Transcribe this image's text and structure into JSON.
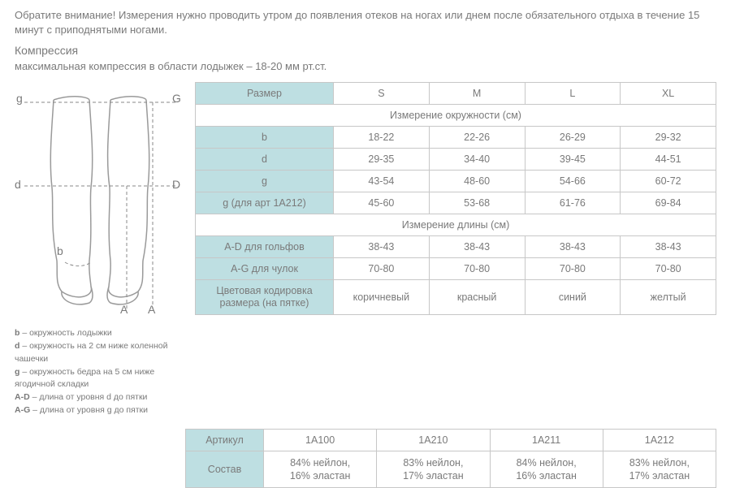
{
  "intro_text": "Обратите внимание! Измерения нужно проводить утром до появления отеков на ногах или днем после обязательного отдыха в течение 15 минут с приподнятыми ногами.",
  "compression_title": "Компрессия",
  "compression_sub": "максимальная компрессия в области лодыжек – 18-20 мм рт.ст.",
  "diagram": {
    "labels": {
      "g_low": "g",
      "G_up": "G",
      "d_low": "d",
      "D_up": "D",
      "b": "b",
      "A1": "A",
      "A2": "A"
    },
    "stroke_color": "#9a9a9a",
    "dash_color": "#8a8a8a"
  },
  "legend": [
    {
      "bold": "b",
      "text": " – окружность лодыжки"
    },
    {
      "bold": "d",
      "text": " – окружность на 2 см ниже коленной чашечки"
    },
    {
      "bold": "g",
      "text": " – окружность бедра на 5 см ниже ягодичной складки"
    },
    {
      "bold": "A-D",
      "text": " – длина от уровня d до пятки"
    },
    {
      "bold": "A-G",
      "text": " – длина от уровня g до пятки"
    }
  ],
  "size_table": {
    "header_label": "Размер",
    "sizes": [
      "S",
      "M",
      "L",
      "XL"
    ],
    "section1": "Измерение окружности (см)",
    "rows1": [
      {
        "label": "b",
        "values": [
          "18-22",
          "22-26",
          "26-29",
          "29-32"
        ]
      },
      {
        "label": "d",
        "values": [
          "29-35",
          "34-40",
          "39-45",
          "44-51"
        ]
      },
      {
        "label": "g",
        "values": [
          "43-54",
          "48-60",
          "54-66",
          "60-72"
        ]
      },
      {
        "label": "g (для арт 1А212)",
        "values": [
          "45-60",
          "53-68",
          "61-76",
          "69-84"
        ]
      }
    ],
    "section2": "Измерение длины (см)",
    "rows2": [
      {
        "label": "A-D для гольфов",
        "values": [
          "38-43",
          "38-43",
          "38-43",
          "38-43"
        ]
      },
      {
        "label": "A-G для чулок",
        "values": [
          "70-80",
          "70-80",
          "70-80",
          "70-80"
        ]
      }
    ],
    "color_row": {
      "label": "Цветовая кодировка размера (на пятке)",
      "values": [
        "коричневый",
        "красный",
        "синий",
        "желтый"
      ]
    }
  },
  "art_table": {
    "rows": [
      {
        "label": "Артикул",
        "values": [
          "1А100",
          "1А210",
          "1А211",
          "1А212"
        ]
      },
      {
        "label": "Состав",
        "values": [
          "84% нейлон,\n16% эластан",
          "83% нейлон,\n17% эластан",
          "84% нейлон,\n16% эластан",
          "83% нейлон,\n17% эластан"
        ]
      }
    ]
  },
  "colors": {
    "blue_cell": "#bedfe2",
    "border": "#c7c7c7",
    "text": "#7a7a7a"
  }
}
